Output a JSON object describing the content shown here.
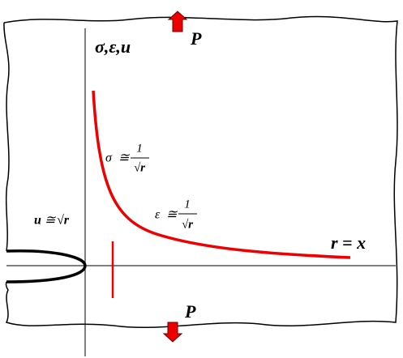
{
  "top_load": "P",
  "bottom_load": "P",
  "axis_label": "σ,ε,u",
  "stress": {
    "symbol": "σ",
    "relation": "≅",
    "numerator": "1",
    "denominator": "√r"
  },
  "strain": {
    "symbol": "ε",
    "relation": "≅",
    "numerator": "1",
    "denominator": "√r"
  },
  "displacement": {
    "symbol": "u",
    "relation": "≅",
    "root": "√r"
  },
  "distance_label": "r = x"
}
